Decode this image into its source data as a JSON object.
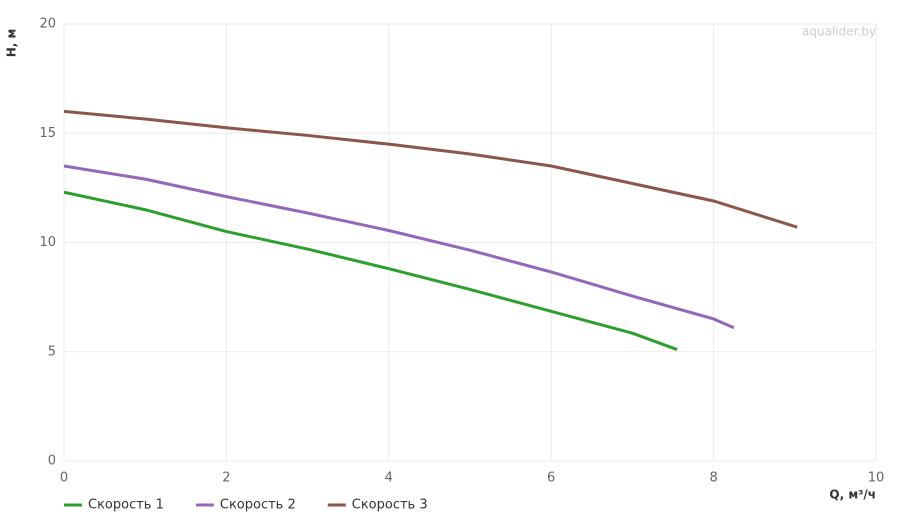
{
  "chart_data": {
    "type": "line",
    "watermark": "aqualider.by",
    "x_label": "Q, м³/ч",
    "y_label": "H, м",
    "xlim": [
      0,
      10
    ],
    "xticks": [
      0,
      2,
      4,
      6,
      8,
      10
    ],
    "ylim": [
      0,
      20
    ],
    "yticks": [
      0,
      5,
      10,
      15,
      20
    ],
    "grid": true,
    "legend": "bottom-left",
    "series": [
      {
        "name": "Скорость 1",
        "color": "#2ca02c",
        "x": [
          0,
          1,
          2,
          3,
          4,
          5,
          6,
          7,
          7.55
        ],
        "values": [
          12.3,
          11.5,
          10.5,
          9.7,
          8.8,
          7.85,
          6.85,
          5.85,
          5.1
        ]
      },
      {
        "name": "Скорость 2",
        "color": "#9467bd",
        "x": [
          0,
          1,
          2,
          3,
          4,
          5,
          6,
          7,
          8,
          8.25
        ],
        "values": [
          13.5,
          12.9,
          12.1,
          11.35,
          10.55,
          9.65,
          8.65,
          7.55,
          6.5,
          6.1
        ]
      },
      {
        "name": "Скорость 3",
        "color": "#8c564b",
        "x": [
          0,
          1,
          2,
          3,
          4,
          5,
          6,
          7,
          8,
          9.03
        ],
        "values": [
          16,
          15.65,
          15.25,
          14.9,
          14.5,
          14.05,
          13.5,
          12.7,
          11.9,
          10.7
        ]
      }
    ]
  }
}
